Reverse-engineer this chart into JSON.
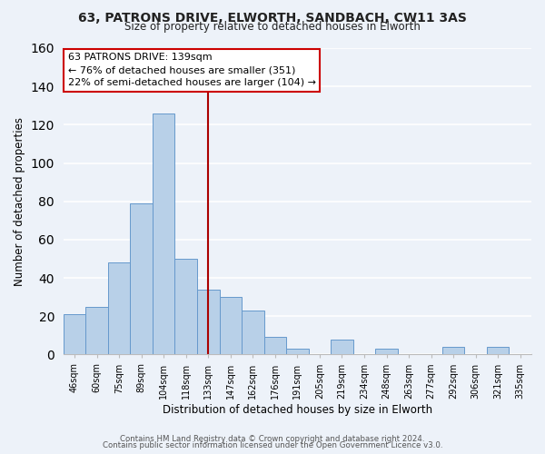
{
  "title1": "63, PATRONS DRIVE, ELWORTH, SANDBACH, CW11 3AS",
  "title2": "Size of property relative to detached houses in Elworth",
  "xlabel": "Distribution of detached houses by size in Elworth",
  "ylabel": "Number of detached properties",
  "bar_labels": [
    "46sqm",
    "60sqm",
    "75sqm",
    "89sqm",
    "104sqm",
    "118sqm",
    "133sqm",
    "147sqm",
    "162sqm",
    "176sqm",
    "191sqm",
    "205sqm",
    "219sqm",
    "234sqm",
    "248sqm",
    "263sqm",
    "277sqm",
    "292sqm",
    "306sqm",
    "321sqm",
    "335sqm"
  ],
  "bar_values": [
    21,
    25,
    48,
    79,
    126,
    50,
    34,
    30,
    23,
    9,
    3,
    0,
    8,
    0,
    3,
    0,
    0,
    4,
    0,
    4,
    0
  ],
  "bar_color": "#b8d0e8",
  "bar_edge_color": "#6699cc",
  "vline_x": 6.5,
  "vline_color": "#aa0000",
  "annotation_line1": "63 PATRONS DRIVE: 139sqm",
  "annotation_line2": "← 76% of detached houses are smaller (351)",
  "annotation_line3": "22% of semi-detached houses are larger (104) →",
  "ylim": [
    0,
    160
  ],
  "background_color": "#edf2f9",
  "grid_color": "#ffffff",
  "footer1": "Contains HM Land Registry data © Crown copyright and database right 2024.",
  "footer2": "Contains public sector information licensed under the Open Government Licence v3.0."
}
